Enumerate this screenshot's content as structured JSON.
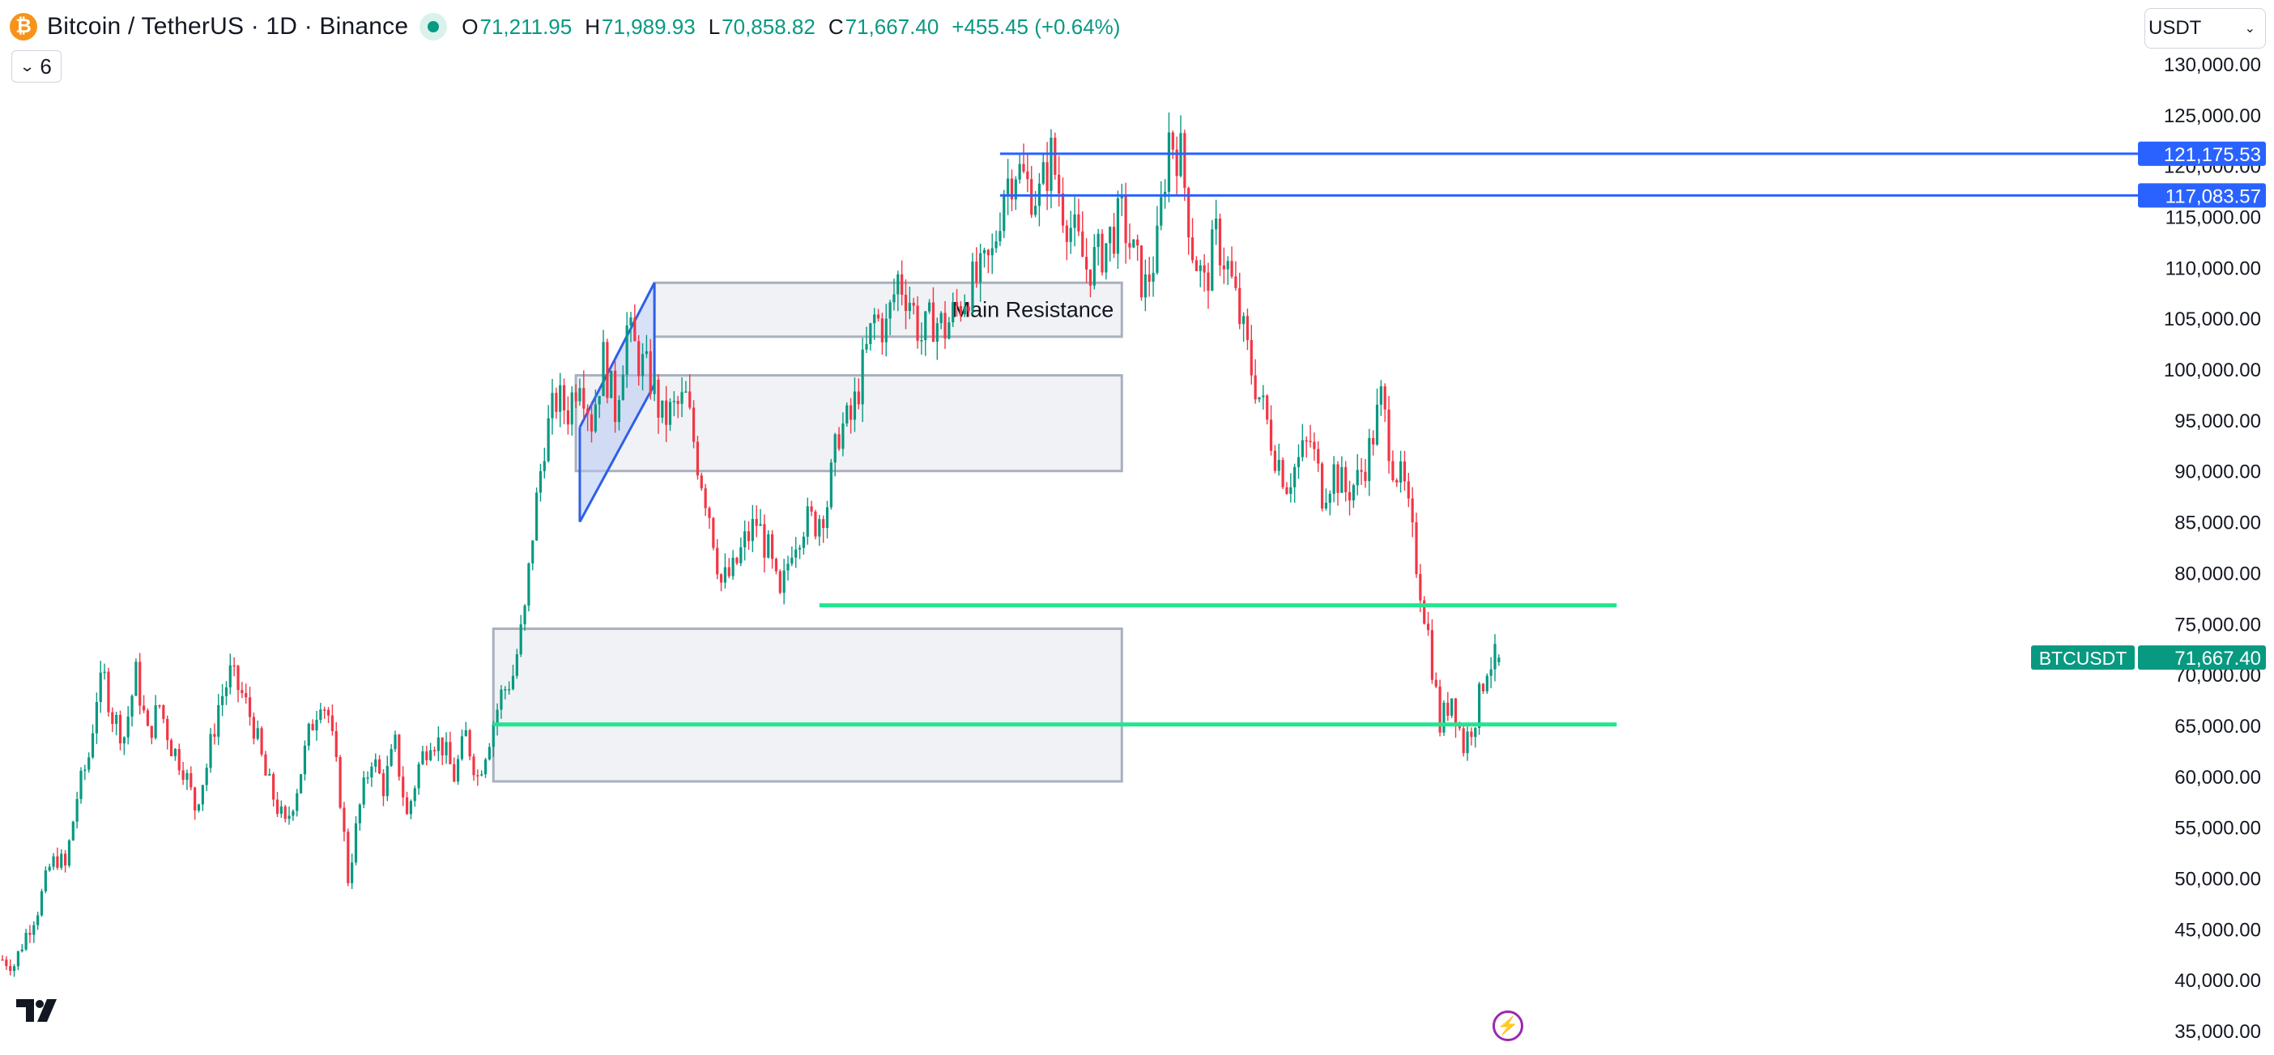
{
  "header": {
    "coin_icon": "bitcoin-icon",
    "coin_glyph": "₿",
    "coin_color": "#f7931a",
    "title": "Bitcoin / TetherUS · 1D · Binance",
    "live_icon": "market-open-dot-icon",
    "ohlc": {
      "o_label": "O",
      "o_value": "71,211.95",
      "h_label": "H",
      "h_value": "71,989.93",
      "l_label": "L",
      "l_value": "70,858.82",
      "c_label": "C",
      "c_value": "71,667.40",
      "change": "+455.45 (+0.64%)"
    }
  },
  "indicators_toggle": {
    "icon": "chevron-down-icon",
    "count": "6"
  },
  "currency": {
    "value": "USDT",
    "icon": "caret-down-icon"
  },
  "footer": {
    "logo": "tradingview-logo",
    "flash_icon": "lightning-icon"
  },
  "colors": {
    "up": "#089981",
    "down": "#f23645",
    "zone_fill": "#eef0f3",
    "zone_stroke": "#a9b0bd",
    "target_line": "#2962ff",
    "support_line": "#22e58f",
    "flag_stroke": "#2f5fe8",
    "axis_text": "#131722",
    "last_price_badge": "#089981"
  },
  "chart_data": {
    "type": "candlestick",
    "symbol": "BTCUSDT",
    "interval": "1D",
    "exchange": "Binance",
    "y_axis": {
      "range": [
        35000,
        130000
      ],
      "ticks": [
        130000,
        125000,
        120000,
        115000,
        110000,
        105000,
        100000,
        95000,
        90000,
        85000,
        80000,
        75000,
        70000,
        65000,
        60000,
        55000,
        50000,
        45000,
        40000,
        35000
      ],
      "tick_labels": [
        "130,000.00",
        "125,000.00",
        "120,000.00",
        "115,000.00",
        "110,000.00",
        "105,000.00",
        "100,000.00",
        "95,000.00",
        "90,000.00",
        "85,000.00",
        "80,000.00",
        "75,000.00",
        "70,000.00",
        "65,000.00",
        "60,000.00",
        "55,000.00",
        "50,000.00",
        "45,000.00",
        "40,000.00",
        "35,000.00"
      ]
    },
    "last_price": {
      "symbol_label": "BTCUSDT",
      "value": 71667.4,
      "label": "71,667.40"
    },
    "price_path": [
      [
        0,
        42000
      ],
      [
        3,
        41500
      ],
      [
        6,
        44500
      ],
      [
        9,
        47000
      ],
      [
        12,
        51000
      ],
      [
        14,
        52000
      ],
      [
        16,
        51000
      ],
      [
        19,
        58000
      ],
      [
        22,
        62000
      ],
      [
        24,
        68000
      ],
      [
        26,
        69500
      ],
      [
        28,
        66000
      ],
      [
        31,
        64000
      ],
      [
        34,
        70000
      ],
      [
        37,
        64000
      ],
      [
        40,
        67000
      ],
      [
        43,
        63000
      ],
      [
        46,
        61000
      ],
      [
        49,
        57000
      ],
      [
        52,
        61000
      ],
      [
        55,
        67000
      ],
      [
        58,
        70000
      ],
      [
        61,
        68000
      ],
      [
        64,
        65000
      ],
      [
        67,
        60000
      ],
      [
        69,
        58000
      ],
      [
        72,
        55000
      ],
      [
        75,
        59000
      ],
      [
        78,
        64000
      ],
      [
        81,
        68000
      ],
      [
        83,
        66000
      ],
      [
        86,
        58000
      ],
      [
        88,
        50000
      ],
      [
        91,
        57000
      ],
      [
        94,
        62000
      ],
      [
        97,
        59000
      ],
      [
        100,
        63000
      ],
      [
        103,
        56000
      ],
      [
        106,
        61000
      ],
      [
        109,
        64000
      ],
      [
        112,
        63000
      ],
      [
        115,
        60000
      ],
      [
        118,
        64000
      ],
      [
        121,
        60000
      ],
      [
        124,
        64000
      ],
      [
        127,
        68000
      ],
      [
        130,
        70000
      ],
      [
        133,
        76000
      ],
      [
        135,
        84000
      ],
      [
        138,
        93000
      ],
      [
        141,
        97000
      ],
      [
        144,
        96000
      ],
      [
        147,
        100000
      ],
      [
        150,
        95000
      ],
      [
        153,
        101000
      ],
      [
        156,
        96000
      ],
      [
        159,
        104000
      ],
      [
        162,
        101000
      ],
      [
        165,
        99000
      ],
      [
        168,
        95000
      ],
      [
        171,
        96000
      ],
      [
        174,
        97000
      ],
      [
        177,
        91000
      ],
      [
        180,
        86000
      ],
      [
        183,
        79000
      ],
      [
        186,
        80000
      ],
      [
        189,
        83000
      ],
      [
        192,
        85000
      ],
      [
        195,
        82000
      ],
      [
        198,
        77000
      ],
      [
        201,
        83000
      ],
      [
        204,
        85000
      ],
      [
        207,
        85000
      ],
      [
        210,
        87000
      ],
      [
        213,
        94000
      ],
      [
        216,
        95000
      ],
      [
        219,
        100000
      ],
      [
        222,
        105000
      ],
      [
        225,
        104000
      ],
      [
        228,
        109000
      ],
      [
        231,
        107000
      ],
      [
        234,
        103000
      ],
      [
        237,
        105000
      ],
      [
        240,
        104000
      ],
      [
        243,
        106000
      ],
      [
        246,
        108000
      ],
      [
        249,
        109000
      ],
      [
        252,
        111000
      ],
      [
        255,
        118000
      ],
      [
        258,
        120000
      ],
      [
        261,
        118000
      ],
      [
        264,
        117000
      ],
      [
        267,
        121000
      ],
      [
        270,
        116000
      ],
      [
        273,
        113000
      ],
      [
        276,
        110000
      ],
      [
        279,
        111000
      ],
      [
        282,
        113000
      ],
      [
        285,
        115000
      ],
      [
        288,
        111000
      ],
      [
        291,
        108000
      ],
      [
        294,
        112000
      ],
      [
        297,
        123000
      ],
      [
        300,
        121000
      ],
      [
        303,
        112000
      ],
      [
        306,
        108000
      ],
      [
        309,
        113000
      ],
      [
        312,
        110000
      ],
      [
        315,
        105000
      ],
      [
        318,
        100000
      ],
      [
        321,
        96000
      ],
      [
        324,
        92000
      ],
      [
        327,
        89000
      ],
      [
        330,
        91000
      ],
      [
        333,
        93000
      ],
      [
        336,
        88000
      ],
      [
        339,
        90000
      ],
      [
        342,
        88000
      ],
      [
        345,
        89000
      ],
      [
        348,
        92000
      ],
      [
        351,
        97000
      ],
      [
        354,
        91000
      ],
      [
        357,
        88000
      ],
      [
        360,
        81000
      ],
      [
        363,
        74000
      ],
      [
        366,
        65000
      ],
      [
        369,
        68000
      ],
      [
        372,
        63000
      ],
      [
        375,
        66000
      ],
      [
        378,
        71000
      ],
      [
        381,
        71667
      ]
    ],
    "zones": [
      {
        "name": "lower-zone",
        "x": [
          125,
          285
        ],
        "y": [
          59500,
          74500
        ],
        "label": ""
      },
      {
        "name": "middle-zone",
        "x": [
          146,
          285
        ],
        "y": [
          90000,
          99400
        ],
        "label": ""
      },
      {
        "name": "main-resistance-zone",
        "x": [
          166,
          285
        ],
        "y": [
          103200,
          108500
        ],
        "label": "Main Resistance"
      }
    ],
    "horizontal_lines": [
      {
        "name": "target-line-upper",
        "y": 121175.53,
        "x_start": 254,
        "label": "121,175.53",
        "kind": "target"
      },
      {
        "name": "target-line-lower",
        "y": 117083.57,
        "x_start": 254,
        "label": "117,083.57",
        "kind": "target"
      },
      {
        "name": "support-line-upper",
        "y": 76800,
        "x": [
          208,
          411
        ],
        "kind": "support"
      },
      {
        "name": "support-line-lower",
        "y": 65100,
        "x": [
          125,
          411
        ],
        "kind": "support"
      }
    ],
    "flag_pattern": {
      "upper_edge": [
        [
          147,
          94300
        ],
        [
          166,
          108500
        ]
      ],
      "lower_edge": [
        [
          147,
          85000
        ],
        [
          166,
          98500
        ]
      ]
    },
    "x_range": [
      0,
      600
    ],
    "grid": false,
    "legend": "none",
    "volume": false
  }
}
